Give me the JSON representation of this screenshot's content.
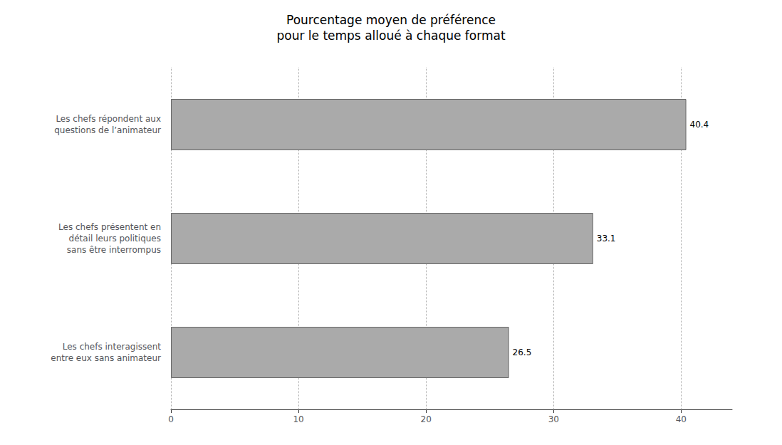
{
  "chart_data": {
    "type": "bar",
    "orientation": "horizontal",
    "title": "Pourcentage moyen de préférence\npour le temps alloué à chaque format",
    "categories": [
      "Les chefs interagissent\nentre eux sans animateur",
      "Les chefs présentent en\ndétail leurs politiques\nsans être interrompus",
      "Les chefs répondent aux\nquestions de l’animateur"
    ],
    "values": [
      26.5,
      33.1,
      40.4
    ],
    "value_labels": [
      "26.5",
      "33.1",
      "40.4"
    ],
    "data_labels": true,
    "color": "#aaaaaa",
    "xlim": [
      0,
      44
    ],
    "xticks": [
      0,
      10,
      20,
      30,
      40
    ],
    "grid": true
  }
}
